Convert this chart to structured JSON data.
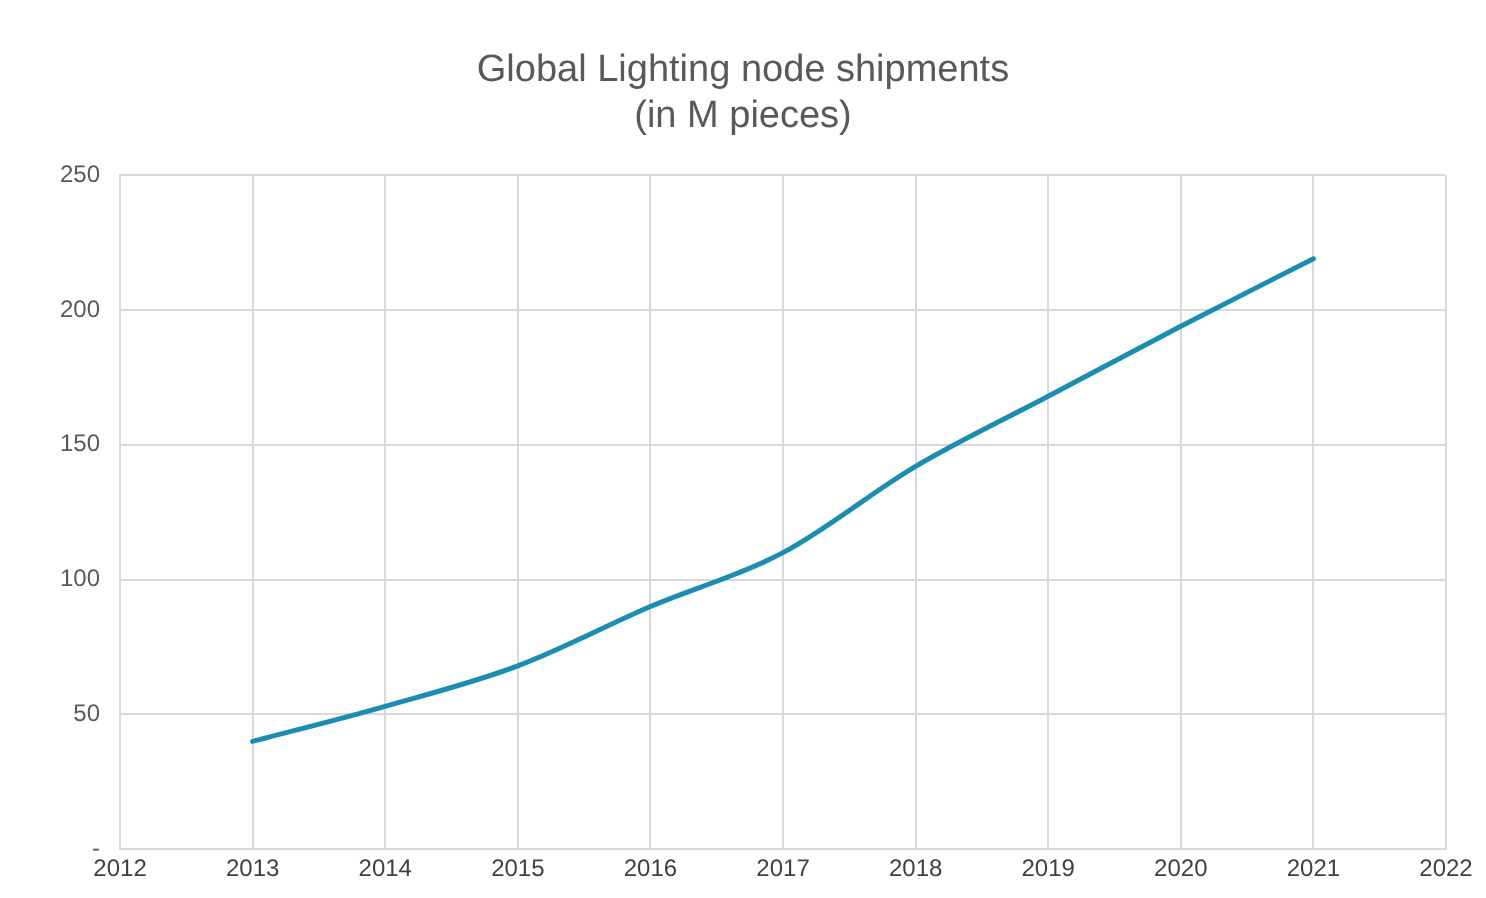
{
  "chart_data": {
    "type": "line",
    "title": "Global Lighting node shipments\n(in M pieces)",
    "x": [
      2013,
      2014,
      2015,
      2016,
      2017,
      2018,
      2019,
      2020,
      2021
    ],
    "series": [
      {
        "color": "#1b8db0",
        "values": [
          40,
          53,
          68,
          90,
          110,
          142,
          168,
          194,
          219
        ]
      }
    ],
    "xlim": [
      2012,
      2022
    ],
    "xticks": [
      2012,
      2013,
      2014,
      2015,
      2016,
      2017,
      2018,
      2019,
      2020,
      2021,
      2022
    ],
    "ylim": [
      0,
      250
    ],
    "yticks": [
      {
        "value": 0,
        "label": "-"
      },
      50,
      100,
      150,
      200,
      250
    ],
    "grid": true,
    "legend": false,
    "marker": "none",
    "line_style": "solid"
  }
}
